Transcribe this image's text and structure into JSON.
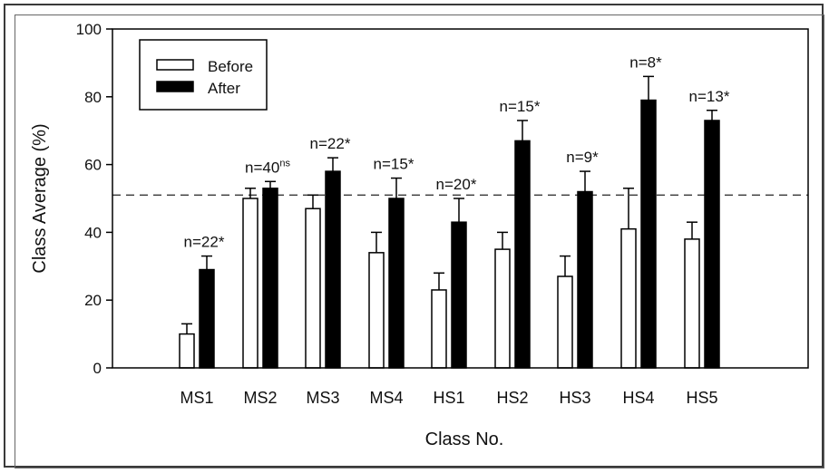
{
  "chart_data": {
    "type": "bar",
    "xlabel": "Class No.",
    "ylabel": "Class Average (%)",
    "ylim": [
      0,
      100
    ],
    "yticks": [
      "0",
      "20",
      "40",
      "60",
      "80",
      "100"
    ],
    "grid": false,
    "legend_position": "top-left",
    "categories": [
      "MS1",
      "MS2",
      "MS3",
      "MS4",
      "HS1",
      "HS2",
      "HS3",
      "HS4",
      "HS5"
    ],
    "series": [
      {
        "name": "Before",
        "color": "#ffffff",
        "values": [
          10,
          50,
          47,
          34,
          23,
          35,
          27,
          41,
          38
        ],
        "errors": [
          3,
          3,
          4,
          6,
          5,
          5,
          6,
          12,
          5
        ]
      },
      {
        "name": "After",
        "color": "#000000",
        "values": [
          29,
          53,
          58,
          50,
          43,
          67,
          52,
          79,
          73
        ],
        "errors": [
          4,
          2,
          4,
          6,
          7,
          6,
          6,
          7,
          3
        ]
      }
    ],
    "n_labels": [
      "n=22*",
      "n=40",
      "n=22*",
      "n=15*",
      "n=20*",
      "n=15*",
      "n=9*",
      "n=8*",
      "n=13*"
    ],
    "n_superscripts": [
      "",
      "ns",
      "",
      "",
      "",
      "",
      "",
      "",
      ""
    ],
    "reference_line": 51
  }
}
